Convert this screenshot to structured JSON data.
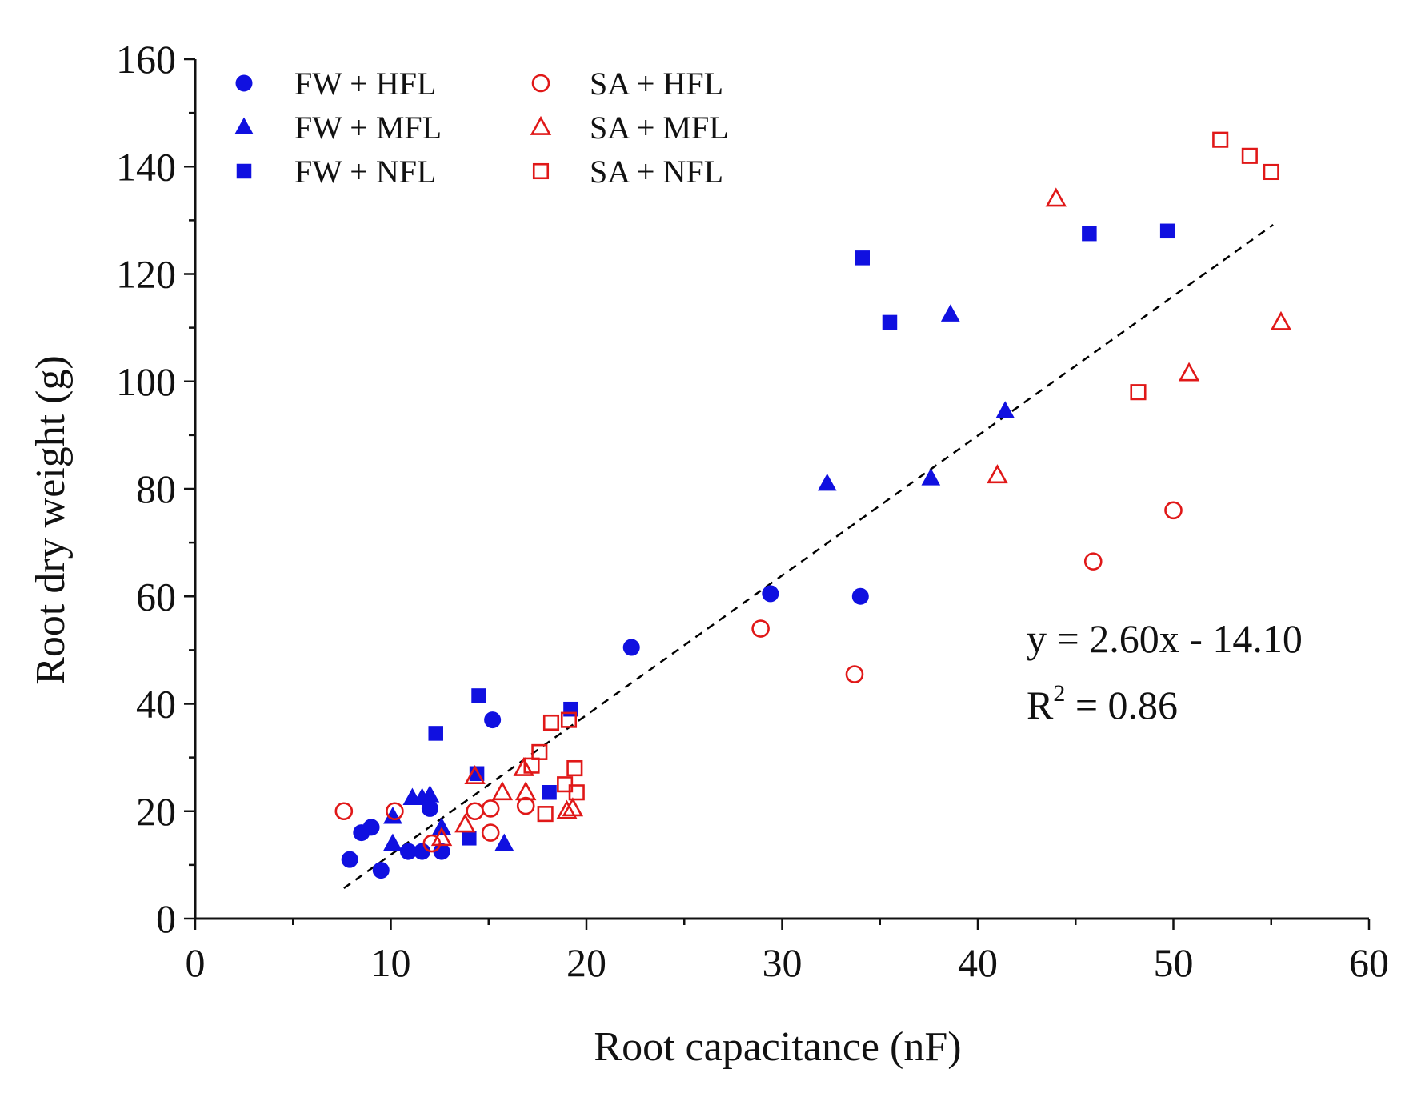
{
  "chart_data": {
    "type": "scatter",
    "xlabel": "Root capacitance (nF)",
    "ylabel": "Root dry weight (g)",
    "xlim": [
      0,
      60
    ],
    "ylim": [
      0,
      160
    ],
    "xticks": [
      0,
      10,
      20,
      30,
      40,
      50,
      60
    ],
    "yticks": [
      0,
      20,
      40,
      60,
      80,
      100,
      120,
      140,
      160
    ],
    "grid": false,
    "legend_position": "top-left",
    "series": [
      {
        "name": "FW + HFL",
        "marker": "circle",
        "filled": true,
        "color": "#1010e0",
        "points": [
          [
            7.9,
            11
          ],
          [
            8.5,
            16
          ],
          [
            9,
            17
          ],
          [
            9.5,
            9
          ],
          [
            10.9,
            12.5
          ],
          [
            11.6,
            12.5
          ],
          [
            12,
            20.5
          ],
          [
            12.6,
            12.5
          ],
          [
            15.2,
            37
          ],
          [
            22.3,
            50.5
          ],
          [
            29.4,
            60.5
          ],
          [
            34,
            60
          ]
        ]
      },
      {
        "name": "FW + MFL",
        "marker": "triangle",
        "filled": true,
        "color": "#1010e0",
        "points": [
          [
            10.1,
            19
          ],
          [
            10.1,
            14
          ],
          [
            11.1,
            22.5
          ],
          [
            11.6,
            22.5
          ],
          [
            12,
            23
          ],
          [
            12.6,
            17
          ],
          [
            15.8,
            14
          ],
          [
            32.3,
            81
          ],
          [
            37.6,
            82
          ],
          [
            38.6,
            112.5
          ],
          [
            41.4,
            94.5
          ]
        ]
      },
      {
        "name": "FW + NFL",
        "marker": "square",
        "filled": true,
        "color": "#1010e0",
        "points": [
          [
            12.3,
            34.5
          ],
          [
            14.5,
            41.5
          ],
          [
            14.4,
            27
          ],
          [
            14,
            15
          ],
          [
            18.1,
            23.5
          ],
          [
            19.2,
            39
          ],
          [
            34.1,
            123
          ],
          [
            35.5,
            111
          ],
          [
            45.7,
            127.5
          ],
          [
            49.7,
            128
          ]
        ]
      },
      {
        "name": "SA + HFL",
        "marker": "circle",
        "filled": false,
        "color": "#e01818",
        "points": [
          [
            7.6,
            20
          ],
          [
            10.2,
            20
          ],
          [
            12.1,
            14
          ],
          [
            14.3,
            20
          ],
          [
            15.1,
            20.5
          ],
          [
            15.1,
            16
          ],
          [
            16.9,
            21
          ],
          [
            28.9,
            54
          ],
          [
            33.7,
            45.5
          ],
          [
            45.9,
            66.5
          ],
          [
            50,
            76
          ]
        ]
      },
      {
        "name": "SA + MFL",
        "marker": "triangle",
        "filled": false,
        "color": "#e01818",
        "points": [
          [
            12.6,
            15
          ],
          [
            13.8,
            17.5
          ],
          [
            14.3,
            26.5
          ],
          [
            15.7,
            23.5
          ],
          [
            16.8,
            28
          ],
          [
            16.9,
            23.5
          ],
          [
            19,
            20
          ],
          [
            19.3,
            20.5
          ],
          [
            41,
            82.5
          ],
          [
            44,
            134
          ],
          [
            50.8,
            101.5
          ],
          [
            55.5,
            111
          ]
        ]
      },
      {
        "name": "SA + NFL",
        "marker": "square",
        "filled": false,
        "color": "#e01818",
        "points": [
          [
            17.2,
            28.5
          ],
          [
            17.6,
            31
          ],
          [
            17.9,
            19.5
          ],
          [
            18.2,
            36.5
          ],
          [
            18.9,
            25
          ],
          [
            19.1,
            37
          ],
          [
            19.4,
            28
          ],
          [
            19.5,
            23.5
          ],
          [
            48.2,
            98
          ],
          [
            52.4,
            145
          ],
          [
            53.9,
            142
          ],
          [
            55,
            139
          ]
        ]
      }
    ],
    "fit_line": {
      "slope": 2.6,
      "intercept": -14.1,
      "x_range": [
        7.6,
        55.1
      ],
      "style": "dashed",
      "color": "#000000"
    },
    "annotation": {
      "line1": "y = 2.60x - 14.10",
      "r2_prefix": "R",
      "r2_superscript": "2",
      "r2_suffix": " = 0.86"
    }
  }
}
